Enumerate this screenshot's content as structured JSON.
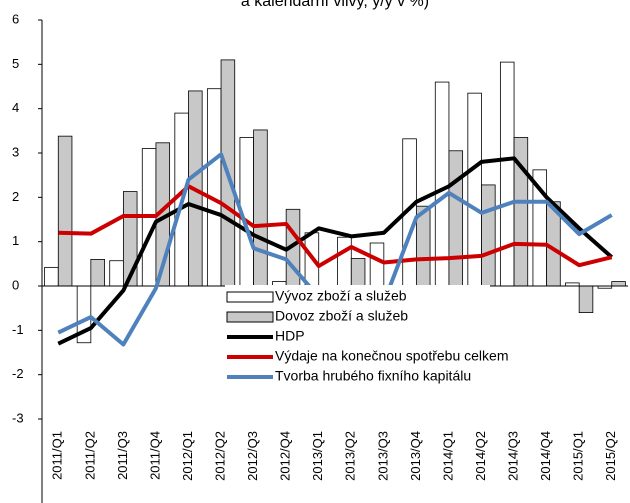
{
  "chart_data": {
    "type": "bar-line",
    "title": "a kalendářní vlivy, y/y v %)",
    "categories": [
      "2011/Q1",
      "2011/Q2",
      "2011/Q3",
      "2011/Q4",
      "2012/Q1",
      "2012/Q2",
      "2012/Q3",
      "2012/Q4",
      "2013/Q1",
      "2013/Q2",
      "2013/Q3",
      "2013/Q4",
      "2014/Q1",
      "2014/Q2",
      "2014/Q3",
      "2014/Q4",
      "2015/Q1",
      "2015/Q2"
    ],
    "series": [
      {
        "name": "Vývoz zboží a služeb",
        "kind": "bar",
        "color": "#ffffff",
        "values": [
          0.42,
          -1.28,
          0.57,
          3.1,
          3.9,
          4.45,
          3.35,
          0.1,
          1.2,
          1.1,
          0.97,
          3.32,
          4.6,
          4.35,
          5.05,
          2.62,
          0.07,
          -0.05
        ]
      },
      {
        "name": "Dovoz zboží a služeb",
        "kind": "bar",
        "color": "#c8c8c8",
        "values": [
          3.38,
          0.6,
          2.13,
          3.23,
          4.4,
          5.1,
          3.52,
          1.73,
          -0.1,
          0.62,
          -0.3,
          1.8,
          3.05,
          2.28,
          3.35,
          1.9,
          -0.6,
          0.1
        ]
      },
      {
        "name": "HDP",
        "kind": "line",
        "color": "#000000",
        "values": [
          -1.3,
          -0.95,
          -0.1,
          1.45,
          1.85,
          1.6,
          1.15,
          0.82,
          1.3,
          1.12,
          1.2,
          1.9,
          2.25,
          2.8,
          2.88,
          2.0,
          1.3,
          0.65
        ]
      },
      {
        "name": "Výdaje na konečnou spotřebu celkem",
        "kind": "line",
        "color": "#cc0000",
        "values": [
          1.2,
          1.18,
          1.58,
          1.58,
          2.25,
          1.87,
          1.35,
          1.4,
          0.45,
          0.88,
          0.53,
          0.6,
          0.63,
          0.68,
          0.95,
          0.93,
          0.47,
          0.65
        ]
      },
      {
        "name": "Tvorba hrubého fixního kapitálu",
        "kind": "line",
        "color": "#4f81bd",
        "values": [
          -1.05,
          -0.7,
          -1.32,
          -0.05,
          2.4,
          2.97,
          0.85,
          0.6,
          -0.25,
          -0.35,
          -0.37,
          1.55,
          2.1,
          1.65,
          1.9,
          1.9,
          1.17,
          1.6
        ]
      }
    ],
    "ylim": [
      -3,
      6
    ],
    "yticks": [
      -3,
      -2,
      -1,
      0,
      1,
      2,
      3,
      4,
      5,
      6
    ]
  }
}
